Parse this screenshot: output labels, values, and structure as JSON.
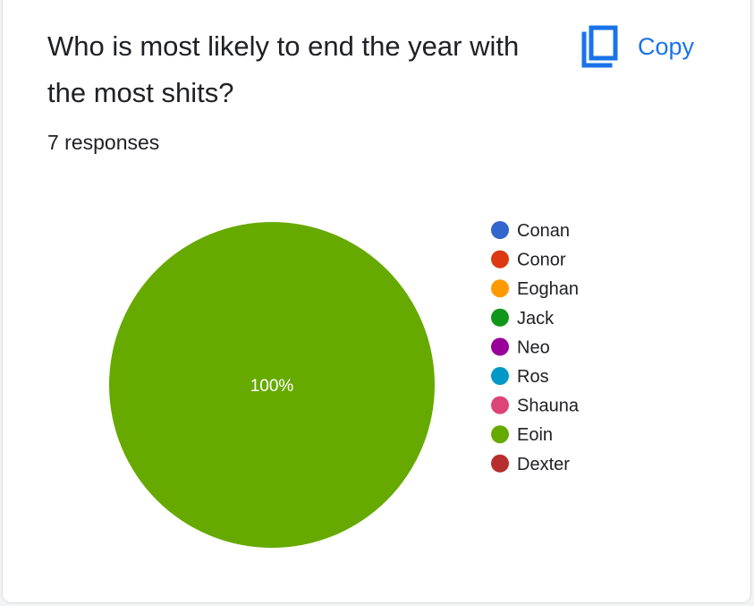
{
  "card": {
    "title": "Who is most likely to end the year with the most shits?",
    "responses": "7 responses",
    "copy_label": "Copy"
  },
  "icons": {
    "copy": "copy-icon"
  },
  "colors": {
    "accent": "#1a73e8"
  },
  "chart_data": {
    "type": "pie",
    "categories": [
      "Conan",
      "Conor",
      "Eoghan",
      "Jack",
      "Neo",
      "Ros",
      "Shauna",
      "Eoin",
      "Dexter"
    ],
    "values": [
      0,
      0,
      0,
      0,
      0,
      0,
      0,
      7,
      0
    ],
    "colors": [
      "#3366cc",
      "#dc3912",
      "#ff9900",
      "#109618",
      "#990099",
      "#0099c6",
      "#dd4477",
      "#66aa00",
      "#b82e2e"
    ],
    "data_labels": [
      "",
      "",
      "",
      "",
      "",
      "",
      "",
      "100%",
      ""
    ],
    "legend_position": "right"
  }
}
